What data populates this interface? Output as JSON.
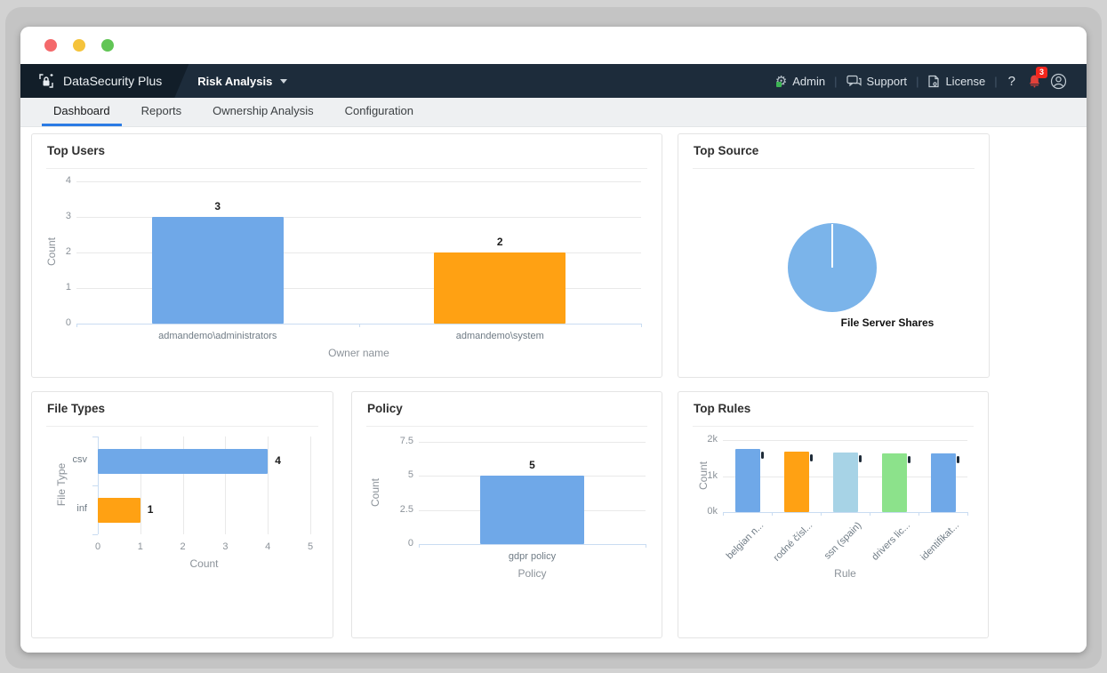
{
  "navbar": {
    "brand": "DataSecurity Plus",
    "module": "Risk Analysis",
    "links": [
      {
        "label": "Admin",
        "icon": "gear-icon"
      },
      {
        "label": "Support",
        "icon": "chat-icon"
      },
      {
        "label": "License",
        "icon": "license-icon"
      }
    ],
    "help_label": "?",
    "notification_count": "3"
  },
  "tabs": [
    {
      "label": "Dashboard",
      "active": true
    },
    {
      "label": "Reports",
      "active": false
    },
    {
      "label": "Ownership Analysis",
      "active": false
    },
    {
      "label": "Configuration",
      "active": false
    }
  ],
  "colors": {
    "accent_blue": "#2b7be4",
    "navbar_bg": "#1d2c3b",
    "bar_blue": "#6fa8e8",
    "bar_orange": "#ffa113",
    "bar_lightblue": "#a7d3e6",
    "bar_green": "#8ce28b",
    "pie_blue": "#7bb4ea",
    "bell_red": "#e2413a"
  },
  "chart_data": [
    {
      "id": "top_users",
      "type": "bar",
      "title": "Top Users",
      "categories": [
        "admandemo\\administrators",
        "admandemo\\system"
      ],
      "values": [
        3,
        2
      ],
      "bar_colors": [
        "#6fa8e8",
        "#ffa113"
      ],
      "xlabel": "Owner name",
      "ylabel": "Count",
      "yticks": [
        0,
        1,
        2,
        3,
        4
      ],
      "ylim": [
        0,
        4
      ],
      "grid": true,
      "legend": "none",
      "value_labels": true
    },
    {
      "id": "top_source",
      "type": "pie",
      "title": "Top Source",
      "slices": [
        {
          "label": "File Server Shares",
          "value": 100,
          "color": "#7bb4ea"
        }
      ]
    },
    {
      "id": "file_types",
      "type": "bar",
      "orientation": "horizontal",
      "title": "File Types",
      "categories": [
        "csv",
        "inf"
      ],
      "values": [
        4,
        1
      ],
      "bar_colors": [
        "#6fa8e8",
        "#ffa113"
      ],
      "xlabel": "Count",
      "ylabel": "File Type",
      "xticks": [
        0,
        1,
        2,
        3,
        4,
        5
      ],
      "xlim": [
        0,
        5
      ],
      "grid": true,
      "value_labels": true
    },
    {
      "id": "policy",
      "type": "bar",
      "title": "Policy",
      "categories": [
        "gdpr policy"
      ],
      "values": [
        5
      ],
      "bar_colors": [
        "#6fa8e8"
      ],
      "xlabel": "Policy",
      "ylabel": "Count",
      "yticks": [
        0,
        2.5,
        5,
        7.5
      ],
      "ytick_labels": [
        "0",
        "2.5",
        "5",
        "7.5"
      ],
      "ylim": [
        0,
        7.5
      ],
      "grid": true,
      "value_labels": true
    },
    {
      "id": "top_rules",
      "type": "bar",
      "title": "Top Rules",
      "categories": [
        "belgian n...",
        "rodné čísl...",
        "ssn (spain)",
        "drivers lic...",
        "identifikat..."
      ],
      "values": [
        1750,
        1680,
        1650,
        1640,
        1630
      ],
      "bar_colors": [
        "#6fa8e8",
        "#ffa113",
        "#a7d3e6",
        "#8ce28b",
        "#6fa8e8"
      ],
      "xlabel": "Rule",
      "ylabel": "Count",
      "yticks": [
        0,
        1000,
        2000
      ],
      "ytick_labels": [
        "0k",
        "1k",
        "2k"
      ],
      "ylim": [
        0,
        2000
      ],
      "grid": true,
      "rotate_x_labels": true,
      "value_marks": true
    }
  ]
}
